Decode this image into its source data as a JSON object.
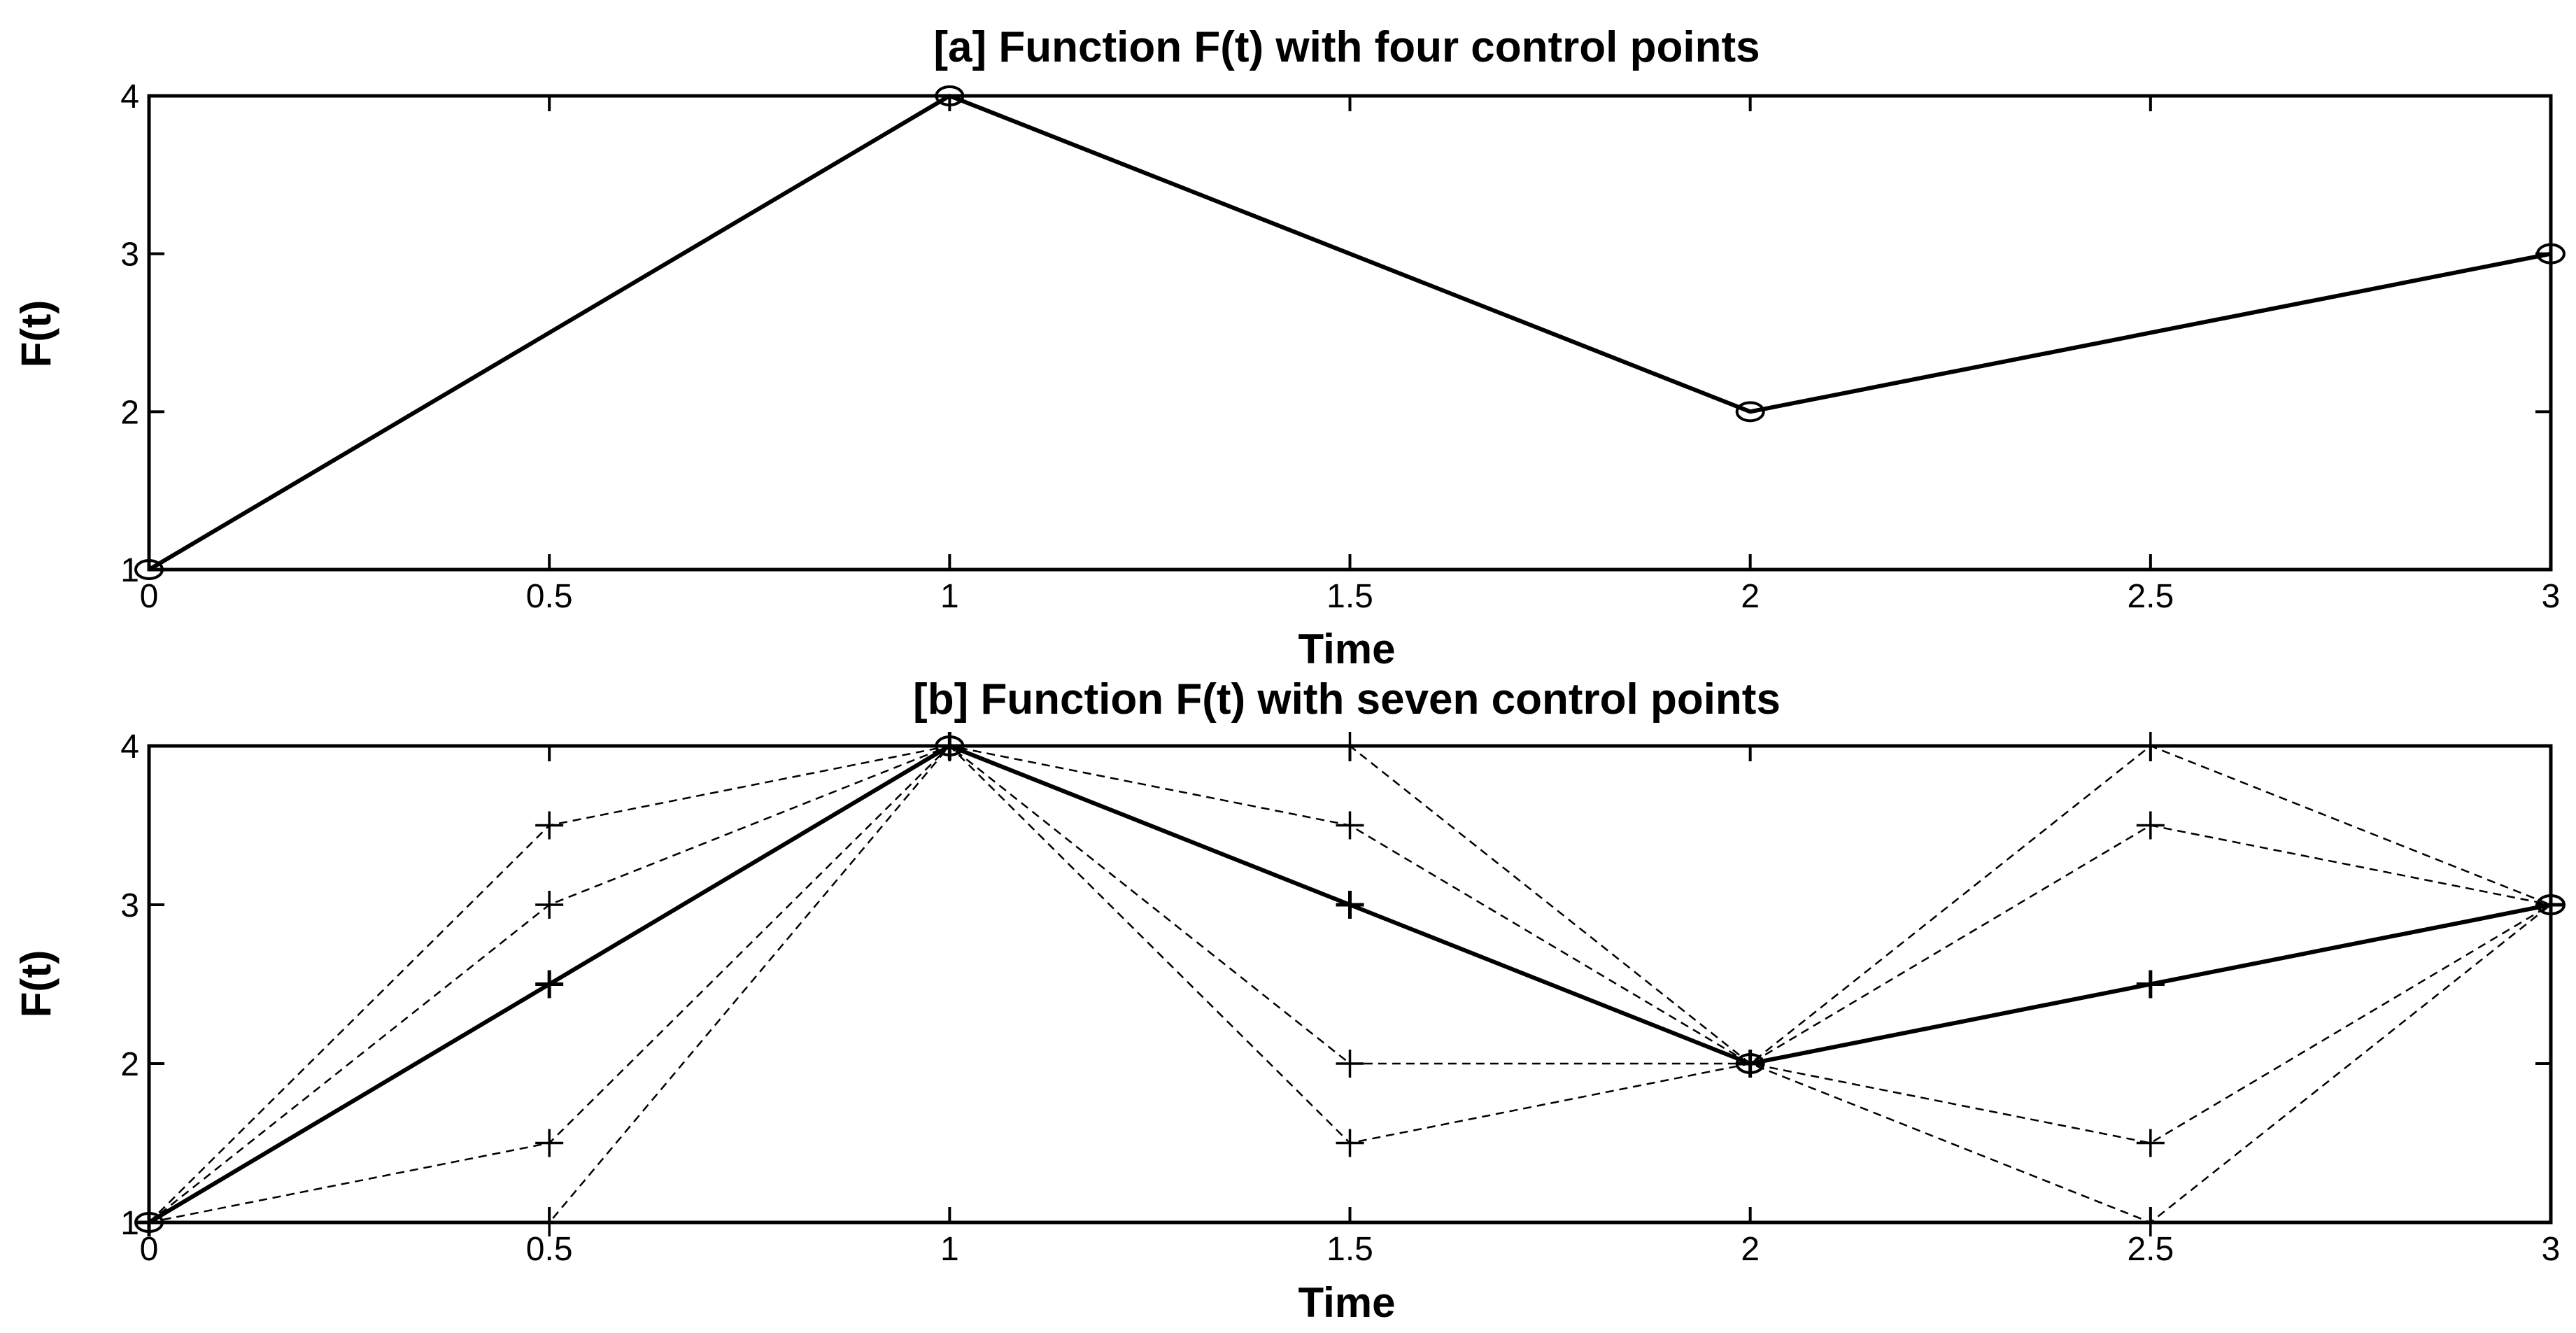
{
  "colors": {
    "line": "#000000",
    "background": "#ffffff"
  },
  "chart_data": [
    {
      "type": "line",
      "title": "[a]   Function F(t) with four control points",
      "xlabel": "Time",
      "ylabel": "F(t)",
      "xlim": [
        0,
        3
      ],
      "ylim": [
        1,
        4
      ],
      "xticks": [
        "0",
        "0.5",
        "1",
        "1.5",
        "2",
        "2.5",
        "3"
      ],
      "yticks": [
        "1",
        "2",
        "3",
        "4"
      ],
      "grid": false,
      "series": [
        {
          "style": "solid",
          "marker": "circle",
          "x": [
            0,
            1,
            2,
            3
          ],
          "y": [
            1,
            4,
            2,
            3
          ]
        }
      ]
    },
    {
      "type": "line",
      "title": "[b]   Function F(t) with seven control points",
      "xlabel": "Time",
      "ylabel": "F(t)",
      "xlim": [
        0,
        3
      ],
      "ylim": [
        1,
        4
      ],
      "xticks": [
        "0",
        "0.5",
        "1",
        "1.5",
        "2",
        "2.5",
        "3"
      ],
      "yticks": [
        "1",
        "2",
        "3",
        "4"
      ],
      "grid": false,
      "series": [
        {
          "style": "solid",
          "marker": "plus",
          "x": [
            0,
            0.5,
            1,
            1.5,
            2,
            2.5,
            3
          ],
          "y": [
            1,
            2.5,
            4,
            3,
            2,
            2.5,
            3
          ]
        },
        {
          "style": "dashed",
          "marker": "plus",
          "x": [
            0,
            0.5,
            1,
            1.5,
            2,
            2.5,
            3
          ],
          "y": [
            1,
            3.5,
            4,
            4,
            2,
            4,
            3
          ]
        },
        {
          "style": "dashed",
          "marker": "plus",
          "x": [
            0,
            0.5,
            1,
            1.5,
            2,
            2.5,
            3
          ],
          "y": [
            1,
            3,
            4,
            3.5,
            2,
            3.5,
            3
          ]
        },
        {
          "style": "dashed",
          "marker": "plus",
          "x": [
            0,
            0.5,
            1,
            1.5,
            2,
            2.5,
            3
          ],
          "y": [
            1,
            1.5,
            4,
            2,
            2,
            1.5,
            3
          ]
        },
        {
          "style": "dashed",
          "marker": "plus",
          "x": [
            0,
            0.5,
            1,
            1.5,
            2,
            2.5,
            3
          ],
          "y": [
            1,
            1,
            4,
            1.5,
            2,
            1,
            3
          ]
        },
        {
          "style": "none",
          "marker": "circle",
          "x": [
            0,
            1,
            2,
            3
          ],
          "y": [
            1,
            4,
            2,
            3
          ]
        }
      ]
    }
  ]
}
